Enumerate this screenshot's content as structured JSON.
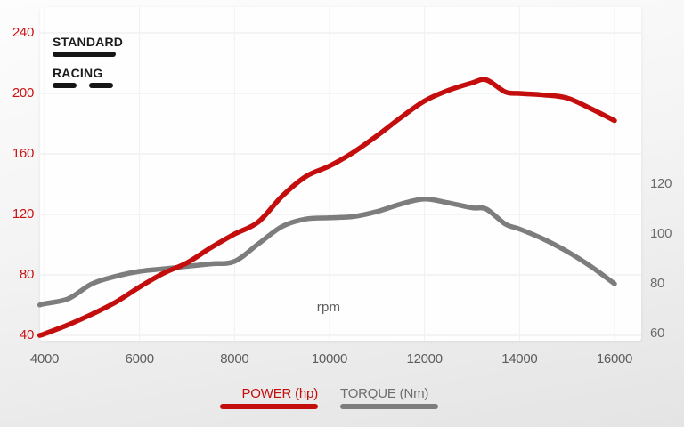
{
  "colors": {
    "power_red": "#c40d0d",
    "torque_gray": "#7d7d7d",
    "left_tick_red": "#cc1111",
    "gray_tick": "#6b6b6b",
    "legend_black": "#161616",
    "grid_horizontal": "#e9e9e9",
    "grid_vertical": "#f0f0f0",
    "plot_background": "#fefefe"
  },
  "chart_data": {
    "type": "line",
    "x_label": "rpm",
    "x_ticks": [
      4000,
      6000,
      8000,
      10000,
      12000,
      14000,
      16000
    ],
    "x_range": [
      4000,
      16000
    ],
    "left_axis": {
      "title": "POWER (hp)",
      "ticks": [
        240,
        200,
        160,
        120,
        80,
        40
      ],
      "range": [
        40,
        240
      ]
    },
    "right_axis": {
      "title": "TORQUE (Nm)",
      "ticks": [
        120,
        100,
        80,
        60
      ],
      "range": [
        60,
        120
      ]
    },
    "grid": true,
    "mode_legend": [
      {
        "label": "STANDARD",
        "line_style": "solid"
      },
      {
        "label": "RACING",
        "line_style": "dashed"
      }
    ],
    "series": [
      {
        "name": "TORQUE (Nm)",
        "axis": "right",
        "color": "#7d7d7d",
        "line_style": "solid",
        "points": [
          [
            3900,
            71.5
          ],
          [
            4000,
            72
          ],
          [
            4500,
            74
          ],
          [
            5000,
            80
          ],
          [
            5500,
            83
          ],
          [
            6000,
            85
          ],
          [
            6500,
            86
          ],
          [
            7000,
            87
          ],
          [
            7500,
            88
          ],
          [
            8000,
            89
          ],
          [
            8500,
            96
          ],
          [
            9000,
            103
          ],
          [
            9500,
            106
          ],
          [
            10000,
            106.5
          ],
          [
            10500,
            107
          ],
          [
            11000,
            109
          ],
          [
            11500,
            112
          ],
          [
            12000,
            114
          ],
          [
            12500,
            112.5
          ],
          [
            13000,
            110.5
          ],
          [
            13300,
            110
          ],
          [
            13700,
            104
          ],
          [
            14000,
            102
          ],
          [
            14500,
            98
          ],
          [
            15000,
            93
          ],
          [
            15500,
            87
          ],
          [
            16000,
            80
          ]
        ]
      },
      {
        "name": "POWER (hp)",
        "axis": "left",
        "color": "#c40d0d",
        "line_style": "solid",
        "points": [
          [
            3900,
            40
          ],
          [
            4000,
            41
          ],
          [
            4500,
            47
          ],
          [
            5000,
            54
          ],
          [
            5500,
            62
          ],
          [
            6000,
            72
          ],
          [
            6500,
            81
          ],
          [
            7000,
            88
          ],
          [
            7500,
            98
          ],
          [
            8000,
            107
          ],
          [
            8500,
            115
          ],
          [
            9000,
            132
          ],
          [
            9500,
            145
          ],
          [
            10000,
            152
          ],
          [
            10500,
            161
          ],
          [
            11000,
            172
          ],
          [
            11500,
            184
          ],
          [
            12000,
            195
          ],
          [
            12500,
            202
          ],
          [
            13000,
            207
          ],
          [
            13300,
            209
          ],
          [
            13700,
            201
          ],
          [
            14000,
            200
          ],
          [
            14500,
            199
          ],
          [
            15000,
            197
          ],
          [
            15500,
            190
          ],
          [
            16000,
            182
          ]
        ]
      }
    ]
  }
}
